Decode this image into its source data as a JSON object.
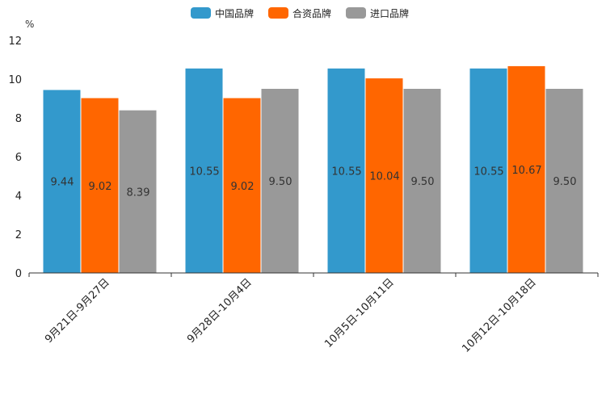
{
  "chart_data": {
    "type": "bar",
    "title": "",
    "ylabel": "%",
    "xlabel": "",
    "ylim": [
      0,
      12
    ],
    "yticks": [
      0,
      2,
      4,
      6,
      8,
      10,
      12
    ],
    "grid": false,
    "legend_position": "top-center",
    "categories": [
      "9月21日-9月27日",
      "9月28日-10月4日",
      "10月5日-10月11日",
      "10月12日-10月18日"
    ],
    "series": [
      {
        "name": "中国品牌",
        "color": "#3399cc",
        "values": [
          9.44,
          10.55,
          10.55,
          10.55
        ],
        "labels": [
          "9.44",
          "10.55",
          "10.55",
          "10.55"
        ]
      },
      {
        "name": "合资品牌",
        "color": "#ff6600",
        "values": [
          9.02,
          9.02,
          10.04,
          10.67
        ],
        "labels": [
          "9.02",
          "9.02",
          "10.04",
          "10.67"
        ]
      },
      {
        "name": "进口品牌",
        "color": "#999999",
        "values": [
          8.39,
          9.5,
          9.5,
          9.5
        ],
        "labels": [
          "8.39",
          "9.50",
          "9.50",
          "9.50"
        ]
      }
    ]
  }
}
